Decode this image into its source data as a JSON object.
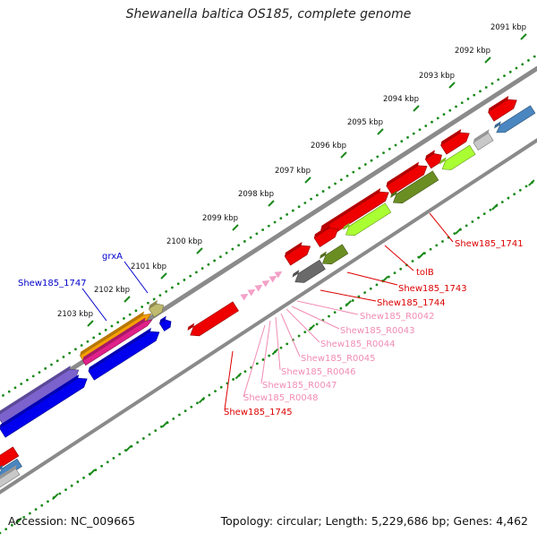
{
  "title": "Shewanella baltica OS185, complete genome",
  "footer": {
    "accession": "Accession: NC_009665",
    "topology": "Topology: circular; Length: 5,229,686 bp; Genes: 4,462"
  },
  "scale_labels": [
    "2091 kbp",
    "2092 kbp",
    "2093 kbp",
    "2094 kbp",
    "2095 kbp",
    "2096 kbp",
    "2097 kbp",
    "2098 kbp",
    "2099 kbp",
    "2100 kbp",
    "2101 kbp",
    "2102 kbp",
    "2103 kbp"
  ],
  "gene_labels": [
    {
      "text": "grxA",
      "color": "#0000cc"
    },
    {
      "text": "Shew185_1747",
      "color": "#0000cc"
    },
    {
      "text": "Shew185_1741",
      "color": "#dd0000"
    },
    {
      "text": "tolB",
      "color": "#dd0000"
    },
    {
      "text": "Shew185_1743",
      "color": "#dd0000"
    },
    {
      "text": "Shew185_1744",
      "color": "#dd0000"
    },
    {
      "text": "Shew185_R0042",
      "color": "#f08cb4"
    },
    {
      "text": "Shew185_R0043",
      "color": "#f08cb4"
    },
    {
      "text": "Shew185_R0044",
      "color": "#f08cb4"
    },
    {
      "text": "Shew185_R0045",
      "color": "#f08cb4"
    },
    {
      "text": "Shew185_R0046",
      "color": "#f08cb4"
    },
    {
      "text": "Shew185_R0047",
      "color": "#f08cb4"
    },
    {
      "text": "Shew185_R0048",
      "color": "#f08cb4"
    },
    {
      "text": "Shew185_1745",
      "color": "#dd0000"
    }
  ],
  "colors": {
    "backbone": "#8a8a8a",
    "scale_dots": "#1a8a1a",
    "red": "#ee0000",
    "blue": "#0000ee",
    "purple": "#7b62cc",
    "steel_blue": "#4a86c0",
    "lime": "#aaff33",
    "olive": "#6b8e23",
    "gray": "#6a6a6a",
    "light_gray": "#c8c8c8",
    "orange": "#f5a000",
    "magenta": "#e0208a",
    "khaki": "#bfba6e",
    "pink": "#f3a0c8"
  }
}
